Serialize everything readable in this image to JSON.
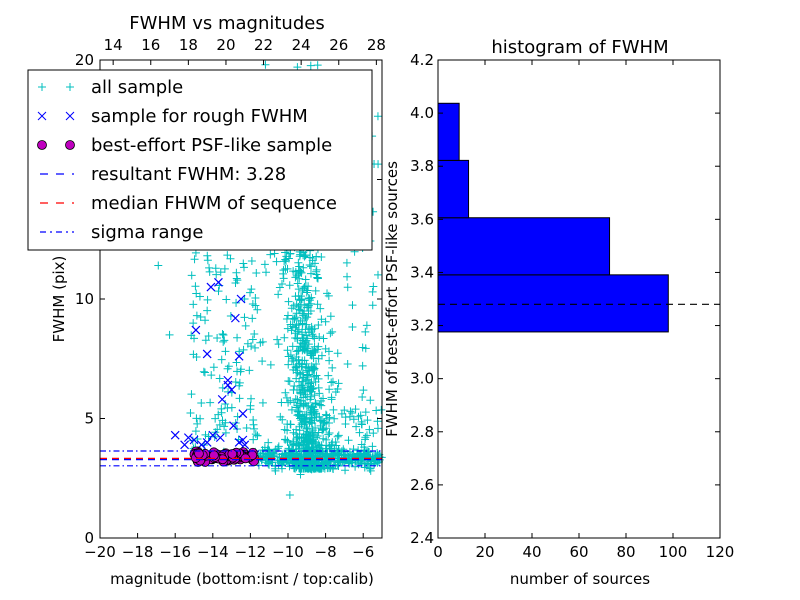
{
  "chart_data": [
    {
      "type": "scatter",
      "title": "FWHM vs magnitudes",
      "xlabel": "magnitude (bottom:isnt / top:calib)",
      "ylabel": "FWHM (pix)",
      "xlim": [
        -20,
        -5
      ],
      "ylim": [
        0,
        20
      ],
      "xticks": [
        "−20",
        "−18",
        "−16",
        "−14",
        "−12",
        "−10",
        "−8",
        "−6"
      ],
      "xtick_values": [
        -20,
        -18,
        -16,
        -14,
        -12,
        -10,
        -8,
        -6
      ],
      "yticks": [
        "0",
        "5",
        "10",
        "15",
        "20"
      ],
      "ytick_values": [
        0,
        5,
        10,
        15,
        20
      ],
      "top_xticks": [
        "14",
        "16",
        "18",
        "20",
        "22",
        "24",
        "26",
        "28"
      ],
      "top_xtick_values": [
        14,
        16,
        18,
        20,
        22,
        24,
        26,
        28
      ],
      "top_offset": 33.3,
      "legend_placement": "upper-left",
      "legend": [
        {
          "label": "all sample",
          "marker": "plus",
          "color": "#00bfbf"
        },
        {
          "label": "sample for rough FWHM",
          "marker": "x",
          "color": "#0000ff"
        },
        {
          "label": "best-effort PSF-like sample",
          "marker": "circle",
          "color": "#bf00bf"
        },
        {
          "label": "resultant FWHM: 3.28",
          "marker": "dashed",
          "color": "#0000ff"
        },
        {
          "label": "median FHWM of sequence",
          "marker": "dashed",
          "color": "#ff0000"
        },
        {
          "label": "sigma range",
          "marker": "dashdot",
          "color": "#0000ff"
        }
      ],
      "lines": {
        "resultant_fwhm": 3.28,
        "median_fwhm": 3.33,
        "sigma_range": [
          3.02,
          3.64
        ]
      },
      "series": {
        "all_sample": {
          "color": "#00bfbf",
          "clusters": [
            {
              "n": 700,
              "x_mean": -8.8,
              "x_sd": 0.55,
              "y_min": 2.9,
              "y_max": 14,
              "y_skew": 2.2,
              "x_tilt_per_unit_y": -0.06
            },
            {
              "n": 320,
              "x_min": -11.6,
              "x_max": -5.0,
              "y_mean": 3.35,
              "y_sd": 0.18
            },
            {
              "n": 130,
              "x_min": -15.2,
              "x_max": -11.6,
              "y_min": 3.6,
              "y_max": 12
            },
            {
              "n": 160,
              "x_min": -12,
              "x_max": -5.2,
              "y_min": 3,
              "y_max": 20
            },
            {
              "n": 60,
              "x_min": -8.2,
              "x_max": -5.0,
              "y_min": 2.8,
              "y_max": 5.5
            }
          ],
          "points": [
            [
              -16.9,
              11.4
            ],
            [
              -9.9,
              1.8
            ],
            [
              -5.5,
              10.3
            ],
            [
              -16.3,
              8.5
            ],
            [
              -11.2,
              19.8
            ],
            [
              -9.5,
              19.7
            ]
          ]
        },
        "rough_sample": {
          "color": "#0000ff",
          "points": [
            [
              -14.1,
              10.5
            ],
            [
              -13.7,
              10.7
            ],
            [
              -12.5,
              10.0
            ],
            [
              -12.8,
              9.2
            ],
            [
              -14.9,
              8.7
            ],
            [
              -14.3,
              7.7
            ],
            [
              -12.6,
              7.6
            ],
            [
              -13.2,
              6.6
            ],
            [
              -13.2,
              6.4
            ],
            [
              -13.0,
              6.2
            ],
            [
              -13.5,
              5.8
            ],
            [
              -12.4,
              5.2
            ],
            [
              -12.9,
              4.7
            ],
            [
              -16.0,
              4.3
            ],
            [
              -15.0,
              4.1
            ],
            [
              -14.3,
              4.0
            ],
            [
              -13.6,
              4.2
            ],
            [
              -12.4,
              4.1
            ],
            [
              -12.6,
              4.0
            ],
            [
              -14.6,
              3.9
            ],
            [
              -15.5,
              3.9
            ],
            [
              -12.3,
              3.9
            ],
            [
              -14.0,
              4.3
            ],
            [
              -15.3,
              4.2
            ]
          ]
        },
        "psf_like_sample": {
          "color": "#bf00bf",
          "cluster": {
            "n": 90,
            "x_min": -15.0,
            "x_max": -11.7,
            "y_mean": 3.42,
            "y_sd": 0.11
          }
        }
      }
    },
    {
      "type": "bar",
      "orientation": "horizontal",
      "title": "histogram of FWHM",
      "xlabel": "number of sources",
      "ylabel": "FWHM of best-effort PSF-like sources",
      "xlim": [
        0,
        120
      ],
      "ylim": [
        2.4,
        4.2
      ],
      "xticks": [
        "0",
        "20",
        "40",
        "60",
        "80",
        "100",
        "120"
      ],
      "xtick_values": [
        0,
        20,
        40,
        60,
        80,
        100,
        120
      ],
      "yticks": [
        "2.4",
        "2.6",
        "2.8",
        "3.0",
        "3.2",
        "3.4",
        "3.6",
        "3.8",
        "4.0",
        "4.2"
      ],
      "ytick_values": [
        2.4,
        2.6,
        2.8,
        3.0,
        3.2,
        3.4,
        3.6,
        3.8,
        4.0,
        4.2
      ],
      "bins": [
        3.176,
        3.391,
        3.606,
        3.822,
        4.037
      ],
      "counts": [
        98,
        73,
        13,
        9
      ],
      "bar_color": "#0000ff",
      "reference_line": 3.28
    }
  ]
}
